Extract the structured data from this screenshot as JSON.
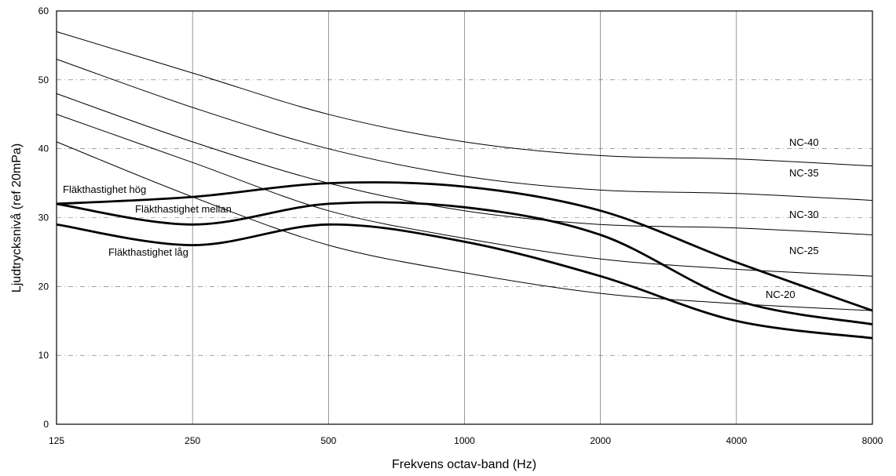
{
  "chart_data": {
    "type": "line",
    "xlabel": "Frekvens octav-band (Hz)",
    "ylabel": "Ljudtrycksnivå (ref 20mPa)",
    "x": [
      125,
      250,
      500,
      1000,
      2000,
      4000,
      8000
    ],
    "x_tick_labels": [
      "125",
      "250",
      "500",
      "1000",
      "2000",
      "4000",
      "8000"
    ],
    "x_scale": "log",
    "ylim": [
      0,
      60
    ],
    "y_ticks": [
      0,
      10,
      20,
      30,
      40,
      50,
      60
    ],
    "grid": true,
    "series": [
      {
        "name": "NC-40",
        "kind": "nc",
        "values": [
          57,
          51,
          45,
          41,
          39,
          38.5,
          37.5
        ]
      },
      {
        "name": "NC-35",
        "kind": "nc",
        "values": [
          53,
          46,
          40,
          36,
          34,
          33.5,
          32.5
        ]
      },
      {
        "name": "NC-30",
        "kind": "nc",
        "values": [
          48,
          41,
          35,
          31,
          29,
          28.5,
          27.5
        ]
      },
      {
        "name": "NC-25",
        "kind": "nc",
        "values": [
          45,
          38,
          31,
          27,
          24,
          22.5,
          21.5
        ]
      },
      {
        "name": "NC-20",
        "kind": "nc",
        "values": [
          41,
          33,
          26,
          22,
          19,
          17.5,
          16.5
        ]
      },
      {
        "name": "Fläkthastighet hög",
        "kind": "fan",
        "values": [
          32,
          33,
          35,
          34.5,
          31,
          23.5,
          16.5
        ]
      },
      {
        "name": "Fläkthastighet mellan",
        "kind": "fan",
        "values": [
          32,
          29,
          32,
          31.5,
          27.5,
          18,
          14.5
        ]
      },
      {
        "name": "Fläkthastighet låg",
        "kind": "fan",
        "values": [
          29,
          26,
          29,
          26.5,
          21.5,
          15,
          12.5
        ]
      }
    ]
  }
}
